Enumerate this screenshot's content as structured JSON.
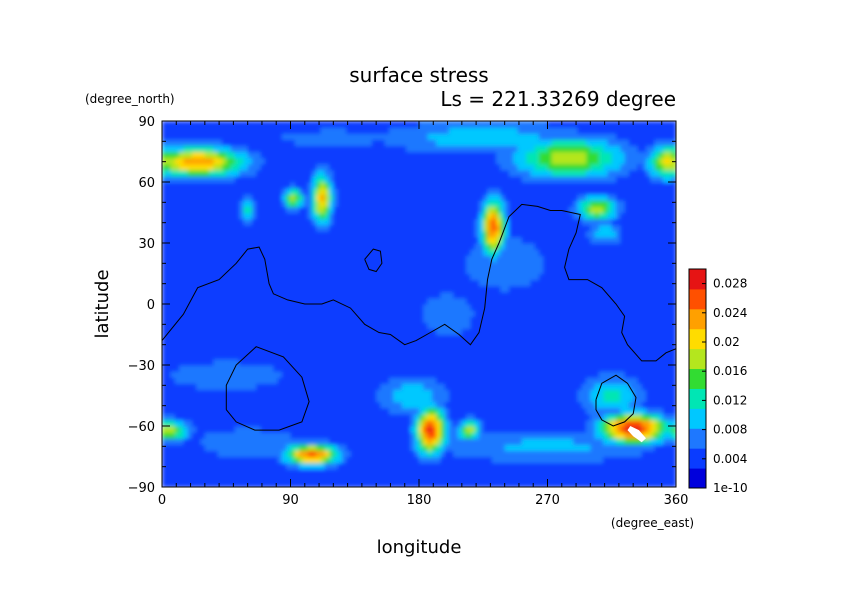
{
  "chart_data": {
    "type": "heatmap",
    "title": "surface stress",
    "subtitle": "Ls = 221.33269 degree",
    "xlabel": "longitude",
    "ylabel": "latitude",
    "x_units": "(degree_east)",
    "y_units": "(degree_north)",
    "xlim": [
      0,
      360
    ],
    "ylim": [
      -90,
      90
    ],
    "x_ticks": [
      "0",
      "90",
      "180",
      "270",
      "360"
    ],
    "y_ticks": [
      "90",
      "60",
      "30",
      "0",
      "−30",
      "−60",
      "−90"
    ],
    "colorbar": {
      "min": 0,
      "max": 0.03,
      "tick_values": [
        0,
        0.004,
        0.008,
        0.012,
        0.016,
        0.02,
        0.024,
        0.028
      ],
      "tick_labels": [
        "1e-10",
        "0.004",
        "0.008",
        "0.012",
        "0.016",
        "0.02",
        "0.024",
        "0.028"
      ],
      "colormap": [
        "#0000dc",
        "#0a3cff",
        "#1e78ff",
        "#00c8ff",
        "#00e6b4",
        "#32dc32",
        "#b4e61e",
        "#ffdc00",
        "#ffa000",
        "#ff5000",
        "#e61414"
      ]
    },
    "background_value": 0.003,
    "features": [
      {
        "lon": 25,
        "lat": 70,
        "peak": 0.024,
        "width": 32,
        "height": 7
      },
      {
        "lon": 355,
        "lat": 70,
        "peak": 0.02,
        "width": 14,
        "height": 8
      },
      {
        "lon": 285,
        "lat": 72,
        "peak": 0.018,
        "width": 38,
        "height": 10
      },
      {
        "lon": 225,
        "lat": 82,
        "peak": 0.01,
        "width": 70,
        "height": 8
      },
      {
        "lon": 120,
        "lat": 82,
        "peak": 0.006,
        "width": 80,
        "height": 8
      },
      {
        "lon": 112,
        "lat": 52,
        "peak": 0.022,
        "width": 7,
        "height": 12
      },
      {
        "lon": 92,
        "lat": 52,
        "peak": 0.018,
        "width": 7,
        "height": 5
      },
      {
        "lon": 60,
        "lat": 47,
        "peak": 0.012,
        "width": 6,
        "height": 6
      },
      {
        "lon": 232,
        "lat": 38,
        "peak": 0.026,
        "width": 8,
        "height": 13
      },
      {
        "lon": 305,
        "lat": 47,
        "peak": 0.018,
        "width": 14,
        "height": 6
      },
      {
        "lon": 310,
        "lat": 35,
        "peak": 0.01,
        "width": 12,
        "height": 6
      },
      {
        "lon": 240,
        "lat": 20,
        "peak": 0.007,
        "width": 40,
        "height": 18
      },
      {
        "lon": 200,
        "lat": -5,
        "peak": 0.006,
        "width": 40,
        "height": 22
      },
      {
        "lon": 30,
        "lat": 15,
        "peak": 0.005,
        "width": 40,
        "height": 15
      },
      {
        "lon": 188,
        "lat": -62,
        "peak": 0.028,
        "width": 10,
        "height": 11
      },
      {
        "lon": 175,
        "lat": -45,
        "peak": 0.01,
        "width": 25,
        "height": 10
      },
      {
        "lon": 215,
        "lat": -62,
        "peak": 0.018,
        "width": 8,
        "height": 5
      },
      {
        "lon": 105,
        "lat": -74,
        "peak": 0.026,
        "width": 18,
        "height": 5
      },
      {
        "lon": 330,
        "lat": -61,
        "peak": 0.03,
        "width": 22,
        "height": 7
      },
      {
        "lon": 315,
        "lat": -45,
        "peak": 0.012,
        "width": 20,
        "height": 10
      },
      {
        "lon": 5,
        "lat": -62,
        "peak": 0.018,
        "width": 14,
        "height": 5
      },
      {
        "lon": 45,
        "lat": -35,
        "peak": 0.008,
        "width": 45,
        "height": 8
      },
      {
        "lon": 60,
        "lat": -68,
        "peak": 0.008,
        "width": 40,
        "height": 8
      },
      {
        "lon": 270,
        "lat": -70,
        "peak": 0.009,
        "width": 80,
        "height": 8
      }
    ],
    "contours": [
      [
        [
          0,
          -18
        ],
        [
          15,
          -5
        ],
        [
          25,
          8
        ],
        [
          40,
          12
        ],
        [
          52,
          20
        ],
        [
          60,
          27
        ],
        [
          68,
          28
        ],
        [
          72,
          22
        ],
        [
          75,
          10
        ],
        [
          78,
          5
        ],
        [
          88,
          2
        ],
        [
          100,
          0
        ],
        [
          112,
          0
        ],
        [
          120,
          2
        ],
        [
          132,
          -2
        ],
        [
          142,
          -10
        ],
        [
          152,
          -14
        ],
        [
          160,
          -15
        ],
        [
          170,
          -20
        ],
        [
          178,
          -18
        ],
        [
          188,
          -14
        ],
        [
          198,
          -10
        ],
        [
          208,
          -15
        ],
        [
          216,
          -20
        ],
        [
          222,
          -14
        ],
        [
          226,
          -2
        ],
        [
          228,
          12
        ],
        [
          231,
          22
        ],
        [
          236,
          30
        ],
        [
          243,
          43
        ],
        [
          252,
          49
        ],
        [
          263,
          48
        ],
        [
          272,
          46
        ],
        [
          280,
          46
        ],
        [
          293,
          44
        ],
        [
          290,
          35
        ],
        [
          285,
          27
        ],
        [
          282,
          18
        ],
        [
          285,
          12
        ],
        [
          298,
          12
        ],
        [
          308,
          8
        ],
        [
          318,
          0
        ],
        [
          324,
          -6
        ],
        [
          322,
          -14
        ],
        [
          326,
          -20
        ],
        [
          336,
          -28
        ],
        [
          346,
          -28
        ],
        [
          353,
          -24
        ],
        [
          360,
          -22
        ]
      ],
      [
        [
          142,
          22
        ],
        [
          148,
          27
        ],
        [
          153,
          26
        ],
        [
          154,
          20
        ],
        [
          150,
          16
        ],
        [
          145,
          17
        ],
        [
          142,
          22
        ]
      ],
      [
        [
          45,
          -52
        ],
        [
          45,
          -40
        ],
        [
          52,
          -30
        ],
        [
          66,
          -21
        ],
        [
          85,
          -26
        ],
        [
          98,
          -36
        ],
        [
          103,
          -48
        ],
        [
          98,
          -58
        ],
        [
          82,
          -62
        ],
        [
          65,
          -62
        ],
        [
          52,
          -58
        ],
        [
          45,
          -52
        ]
      ],
      [
        [
          304,
          -47
        ],
        [
          308,
          -39
        ],
        [
          318,
          -35
        ],
        [
          326,
          -39
        ],
        [
          332,
          -46
        ],
        [
          330,
          -54
        ],
        [
          324,
          -58
        ],
        [
          316,
          -60
        ],
        [
          308,
          -57
        ],
        [
          304,
          -52
        ],
        [
          304,
          -47
        ]
      ]
    ],
    "saturated_region": [
      [
        328,
        -60
      ],
      [
        334,
        -62
      ],
      [
        339,
        -66
      ],
      [
        336,
        -68
      ],
      [
        330,
        -65
      ],
      [
        326,
        -62
      ],
      [
        328,
        -60
      ]
    ]
  }
}
